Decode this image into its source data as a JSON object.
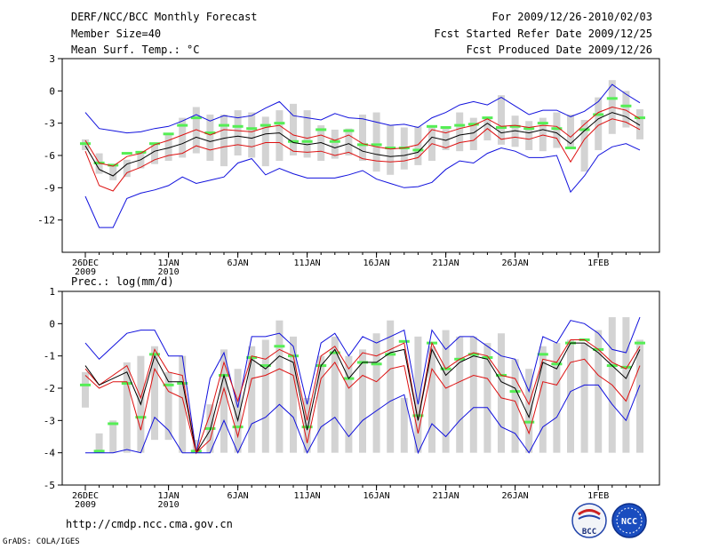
{
  "header": {
    "title": "DERF/NCC/BCC Monthly Forecast",
    "member_size": "Member Size=40",
    "variable": "Mean Surf. Temp.: °C",
    "period": "For 2009/12/26-2010/02/03",
    "start_date": "Fcst Started Refer Date 2009/12/25",
    "produced_date": "Fcst Produced Date 2009/12/26"
  },
  "panel2_label": "Prec.: log(mm/d)",
  "footer": {
    "url": "http://cmdp.ncc.cma.gov.cn",
    "credit": "GrADS: COLA/IGES"
  },
  "logos": {
    "bcc": "BCC",
    "ncc": "NCC"
  },
  "colors": {
    "box": "#d3d3d3",
    "median": "#55ee55",
    "mean": "#000000",
    "inner": "#dd1111",
    "outer": "#1111dd"
  },
  "chart_data": [
    {
      "type": "line",
      "title": "Mean Surf. Temp.: °C",
      "n_days": 40,
      "ylim": [
        -15,
        3
      ],
      "yticks": [
        3,
        0,
        -3,
        -6,
        -9,
        -12
      ],
      "ytick_labels": [
        "3",
        "0",
        "-3",
        "-6",
        "-9",
        "-12"
      ],
      "xticks": [
        {
          "day": 0,
          "label": "26DEC",
          "sub": "2009"
        },
        {
          "day": 6,
          "label": "1JAN",
          "sub": "2010"
        },
        {
          "day": 11,
          "label": "6JAN",
          "sub": ""
        },
        {
          "day": 16,
          "label": "11JAN",
          "sub": ""
        },
        {
          "day": 21,
          "label": "16JAN",
          "sub": ""
        },
        {
          "day": 26,
          "label": "21JAN",
          "sub": ""
        },
        {
          "day": 31,
          "label": "26JAN",
          "sub": ""
        },
        {
          "day": 37,
          "label": "1FEB",
          "sub": ""
        }
      ],
      "box_low": [
        -5.5,
        -7.7,
        -8.3,
        -8.0,
        -7.2,
        -6.8,
        -6.5,
        -6.2,
        -5.8,
        -6.5,
        -7.0,
        -6.0,
        -6.2,
        -7.0,
        -6.5,
        -6.0,
        -6.2,
        -6.5,
        -6.3,
        -6.0,
        -6.5,
        -7.5,
        -7.8,
        -7.3,
        -6.9,
        -6.5,
        -5.5,
        -5.6,
        -5.5,
        -4.6,
        -5.0,
        -5.2,
        -5.5,
        -5.6,
        -5.3,
        -5.2,
        -7.5,
        -5.5,
        -4.0,
        -3.4,
        -4.5
      ],
      "box_high": [
        -4.5,
        -5.8,
        -6.8,
        -6.4,
        -5.6,
        -5.0,
        -4.0,
        -2.5,
        -1.5,
        -2.2,
        -2.2,
        -1.8,
        -2.0,
        -2.4,
        -1.8,
        -1.2,
        -1.8,
        -3.2,
        -3.6,
        -3.5,
        -2.2,
        -2.0,
        -3.2,
        -3.4,
        -3.3,
        -3.4,
        -3.3,
        -2.0,
        -2.5,
        -2.6,
        -0.4,
        -2.3,
        -2.8,
        -2.5,
        -2.0,
        -2.2,
        -2.7,
        -0.6,
        1.0,
        0.0,
        -1.7
      ],
      "median": [
        -4.9,
        -6.7,
        -6.9,
        -5.8,
        -5.7,
        -4.9,
        -4.0,
        -3.2,
        -2.5,
        -3.9,
        -3.2,
        -3.3,
        -3.5,
        -3.2,
        -3.0,
        -4.7,
        -4.7,
        -3.6,
        -4.7,
        -3.7,
        -5.0,
        -5.0,
        -5.3,
        -5.3,
        -5.5,
        -3.3,
        -3.4,
        -3.2,
        -3.1,
        -2.5,
        -3.4,
        -3.3,
        -3.5,
        -3.0,
        -3.5,
        -5.3,
        -3.6,
        -2.2,
        -0.7,
        -1.4,
        -2.5
      ],
      "series": [
        {
          "name": "outer_upper",
          "role": "outer",
          "values": [
            -2.0,
            -3.5,
            -3.7,
            -3.9,
            -3.8,
            -3.5,
            -3.3,
            -2.8,
            -2.2,
            -2.8,
            -2.3,
            -2.5,
            -2.3,
            -1.6,
            -1.0,
            -2.3,
            -2.5,
            -2.7,
            -2.1,
            -2.5,
            -2.6,
            -2.9,
            -3.2,
            -3.1,
            -3.4,
            -2.5,
            -2.0,
            -1.3,
            -1.0,
            -1.3,
            -0.6,
            -1.4,
            -2.2,
            -1.8,
            -1.8,
            -2.4,
            -1.9,
            -1.0,
            0.6,
            -0.3,
            -1.1
          ]
        },
        {
          "name": "inner_upper",
          "role": "inner",
          "values": [
            -4.6,
            -6.7,
            -7.0,
            -6.1,
            -5.8,
            -5.0,
            -4.6,
            -4.1,
            -3.6,
            -4.1,
            -3.6,
            -3.7,
            -3.8,
            -3.4,
            -3.2,
            -4.1,
            -4.4,
            -4.1,
            -4.6,
            -4.1,
            -4.9,
            -5.2,
            -5.4,
            -5.3,
            -5.0,
            -3.6,
            -3.9,
            -3.5,
            -3.2,
            -2.6,
            -3.3,
            -3.2,
            -3.4,
            -3.2,
            -3.3,
            -4.3,
            -3.1,
            -2.0,
            -1.5,
            -1.8,
            -2.6
          ]
        },
        {
          "name": "ensemble_mean",
          "role": "mean",
          "values": [
            -5.1,
            -7.3,
            -7.9,
            -6.8,
            -6.4,
            -5.6,
            -5.3,
            -4.9,
            -4.3,
            -4.7,
            -4.4,
            -4.2,
            -4.4,
            -4.0,
            -3.9,
            -4.8,
            -5.0,
            -4.8,
            -5.3,
            -4.9,
            -5.6,
            -5.9,
            -6.1,
            -6.0,
            -5.7,
            -4.3,
            -4.6,
            -4.1,
            -3.9,
            -3.0,
            -3.9,
            -3.7,
            -3.9,
            -3.6,
            -3.9,
            -4.9,
            -3.7,
            -2.6,
            -2.0,
            -2.4,
            -3.2
          ]
        },
        {
          "name": "inner_lower",
          "role": "inner",
          "values": [
            -5.6,
            -8.8,
            -9.3,
            -7.6,
            -7.1,
            -6.4,
            -6.0,
            -5.8,
            -5.1,
            -5.5,
            -5.2,
            -5.0,
            -5.2,
            -4.8,
            -4.8,
            -5.6,
            -5.7,
            -5.6,
            -6.0,
            -5.7,
            -6.3,
            -6.5,
            -6.6,
            -6.5,
            -6.2,
            -4.9,
            -5.3,
            -4.8,
            -4.6,
            -3.5,
            -4.5,
            -4.3,
            -4.5,
            -4.1,
            -4.4,
            -6.6,
            -4.5,
            -3.2,
            -2.6,
            -2.9,
            -3.6
          ]
        },
        {
          "name": "outer_lower",
          "role": "outer",
          "values": [
            -9.8,
            -12.7,
            -12.7,
            -10.0,
            -9.5,
            -9.2,
            -8.8,
            -8.0,
            -8.6,
            -8.3,
            -8.0,
            -6.7,
            -6.3,
            -7.8,
            -7.2,
            -7.7,
            -8.1,
            -8.1,
            -8.1,
            -7.8,
            -7.4,
            -8.2,
            -8.6,
            -9.0,
            -8.9,
            -8.5,
            -7.3,
            -6.5,
            -6.7,
            -5.8,
            -5.3,
            -5.6,
            -6.2,
            -6.2,
            -6.0,
            -9.4,
            -7.9,
            -6.0,
            -5.2,
            -4.9,
            -5.5
          ]
        }
      ]
    },
    {
      "type": "line",
      "title": "Prec.: log(mm/d)",
      "n_days": 40,
      "ylim": [
        -5,
        1
      ],
      "yticks": [
        1,
        0,
        -1,
        -2,
        -3,
        -4,
        -5
      ],
      "ytick_labels": [
        "1",
        "0",
        "-1",
        "-2",
        "-3",
        "-4",
        "-5"
      ],
      "xticks": [
        {
          "day": 0,
          "label": "26DEC",
          "sub": "2009"
        },
        {
          "day": 6,
          "label": "1JAN",
          "sub": "2010"
        },
        {
          "day": 11,
          "label": "6JAN",
          "sub": ""
        },
        {
          "day": 16,
          "label": "11JAN",
          "sub": ""
        },
        {
          "day": 21,
          "label": "16JAN",
          "sub": ""
        },
        {
          "day": 26,
          "label": "21JAN",
          "sub": ""
        },
        {
          "day": 31,
          "label": "26JAN",
          "sub": ""
        },
        {
          "day": 37,
          "label": "1FEB",
          "sub": ""
        }
      ],
      "box_low": [
        -2.6,
        -4.0,
        -4.0,
        -4.0,
        -4.0,
        -3.6,
        -3.6,
        -4.0,
        -4.0,
        -4.0,
        -4.0,
        -4.0,
        -4.0,
        -4.0,
        -4.0,
        -4.0,
        -4.0,
        -4.0,
        -4.0,
        -4.0,
        -4.0,
        -4.0,
        -4.0,
        -4.0,
        -4.0,
        -4.0,
        -4.0,
        -4.0,
        -4.0,
        -4.0,
        -4.0,
        -4.0,
        -4.0,
        -4.0,
        -4.0,
        -4.0,
        -4.0,
        -4.0,
        -4.0,
        -4.0,
        -4.0
      ],
      "box_high": [
        -1.5,
        -3.4,
        -3.0,
        -1.2,
        -1.0,
        -0.7,
        -1.5,
        -1.0,
        -3.6,
        -2.5,
        -0.8,
        -1.4,
        -0.7,
        -0.5,
        0.1,
        -0.4,
        -2.3,
        -1.0,
        -0.4,
        -1.0,
        -0.8,
        -0.3,
        0.1,
        -2.3,
        -0.4,
        -0.7,
        -0.2,
        -0.4,
        -0.4,
        -0.6,
        -0.3,
        -1.1,
        -1.4,
        -0.7,
        -0.6,
        -0.5,
        -0.6,
        -0.2,
        0.2,
        0.2,
        -0.5
      ],
      "median": [
        -1.9,
        -3.95,
        -3.1,
        -1.85,
        -2.9,
        -0.95,
        -1.9,
        -1.85,
        -3.95,
        -3.25,
        -1.6,
        -3.2,
        -1.05,
        -1.3,
        -0.7,
        -1.0,
        -3.2,
        -1.3,
        -0.9,
        -1.7,
        -1.2,
        -1.25,
        -0.95,
        -0.55,
        -2.85,
        -0.6,
        -1.4,
        -1.1,
        -0.95,
        -1.05,
        -1.6,
        -2.1,
        -3.05,
        -0.95,
        -1.25,
        -0.6,
        -0.5,
        -0.8,
        -1.3,
        -1.35,
        -0.6
      ],
      "series": [
        {
          "name": "outer_upper",
          "role": "outer",
          "values": [
            -0.6,
            -1.1,
            -0.7,
            -0.3,
            -0.2,
            -0.2,
            -1.0,
            -1.0,
            -4.0,
            -1.7,
            -0.9,
            -2.6,
            -0.4,
            -0.4,
            -0.3,
            -0.7,
            -2.5,
            -0.6,
            -0.3,
            -1.0,
            -0.4,
            -0.6,
            -0.4,
            -0.2,
            -2.5,
            -0.2,
            -0.8,
            -0.4,
            -0.4,
            -0.7,
            -1.0,
            -1.1,
            -2.1,
            -0.4,
            -0.6,
            0.1,
            0.0,
            -0.3,
            -0.8,
            -0.9,
            0.2
          ]
        },
        {
          "name": "inner_upper",
          "role": "inner",
          "values": [
            -1.4,
            -1.9,
            -1.6,
            -1.3,
            -2.3,
            -0.8,
            -1.5,
            -1.6,
            -4.0,
            -2.8,
            -1.2,
            -2.4,
            -1.0,
            -1.1,
            -0.8,
            -1.0,
            -3.0,
            -1.0,
            -0.7,
            -1.4,
            -0.9,
            -1.0,
            -0.8,
            -0.6,
            -3.0,
            -0.6,
            -1.4,
            -1.1,
            -0.9,
            -1.0,
            -1.6,
            -1.7,
            -2.5,
            -1.1,
            -1.2,
            -0.5,
            -0.5,
            -0.8,
            -1.2,
            -1.4,
            -0.7
          ]
        },
        {
          "name": "ensemble_mean",
          "role": "mean",
          "values": [
            -1.3,
            -1.9,
            -1.7,
            -1.5,
            -2.5,
            -1.0,
            -1.8,
            -1.8,
            -4.0,
            -3.3,
            -1.6,
            -3.0,
            -1.1,
            -1.4,
            -1.0,
            -1.2,
            -3.3,
            -1.3,
            -0.8,
            -1.7,
            -1.2,
            -1.2,
            -0.9,
            -0.8,
            -3.0,
            -0.8,
            -1.6,
            -1.2,
            -1.0,
            -1.1,
            -1.8,
            -2.0,
            -2.9,
            -1.2,
            -1.4,
            -0.6,
            -0.6,
            -0.9,
            -1.3,
            -1.7,
            -0.8
          ]
        },
        {
          "name": "inner_lower",
          "role": "inner",
          "values": [
            -1.6,
            -2.0,
            -1.8,
            -1.8,
            -3.3,
            -1.4,
            -2.1,
            -2.3,
            -4.0,
            -3.6,
            -2.0,
            -3.5,
            -1.7,
            -1.6,
            -1.4,
            -1.6,
            -3.7,
            -1.7,
            -1.2,
            -2.0,
            -1.6,
            -1.8,
            -1.4,
            -1.3,
            -3.4,
            -1.4,
            -2.0,
            -1.8,
            -1.6,
            -1.7,
            -2.3,
            -2.4,
            -3.4,
            -1.8,
            -1.9,
            -1.2,
            -1.1,
            -1.6,
            -1.9,
            -2.4,
            -1.3
          ]
        },
        {
          "name": "outer_lower",
          "role": "outer",
          "values": [
            -4.0,
            -4.0,
            -4.0,
            -3.9,
            -4.0,
            -2.9,
            -3.3,
            -4.0,
            -4.0,
            -4.0,
            -3.0,
            -4.0,
            -3.1,
            -2.9,
            -2.5,
            -2.9,
            -4.0,
            -3.2,
            -2.9,
            -3.5,
            -3.0,
            -2.7,
            -2.4,
            -2.2,
            -4.0,
            -3.1,
            -3.5,
            -3.0,
            -2.6,
            -2.6,
            -3.2,
            -3.4,
            -4.0,
            -3.2,
            -2.9,
            -2.1,
            -1.9,
            -1.9,
            -2.5,
            -3.0,
            -1.9
          ]
        }
      ]
    }
  ]
}
